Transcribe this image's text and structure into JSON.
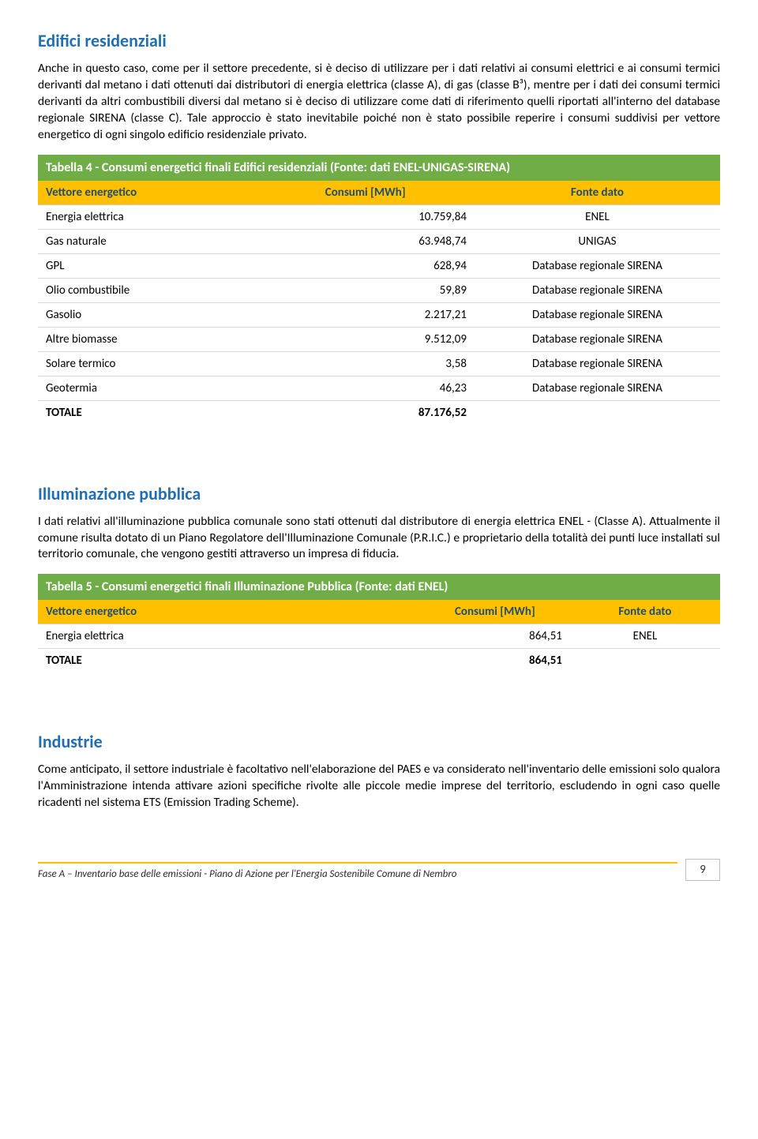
{
  "section1": {
    "title": "Edifici residenziali",
    "para": "Anche in questo caso, come per il settore precedente, si è deciso di utilizzare per i dati relativi ai consumi elettrici e ai consumi termici derivanti dal metano i dati ottenuti dai distributori di energia elettrica (classe A), di gas (classe B³), mentre per i dati dei consumi termici derivanti da altri combustibili diversi dal metano si è deciso di utilizzare come dati di riferimento quelli riportati all'interno del database regionale SIRENA (classe C). Tale approccio è stato inevitabile poiché non è stato possibile reperire i consumi suddivisi per vettore energetico di ogni singolo edificio residenziale privato."
  },
  "table4": {
    "title": "Tabella 4 - Consumi energetici finali Edifici residenziali (Fonte: dati ENEL-UNIGAS-SIRENA)",
    "headers": {
      "c0": "Vettore energetico",
      "c1": "Consumi [MWh]",
      "c2": "Fonte dato"
    },
    "rows": [
      {
        "c0": "Energia elettrica",
        "c1": "10.759,84",
        "c2": "ENEL"
      },
      {
        "c0": "Gas naturale",
        "c1": "63.948,74",
        "c2": "UNIGAS"
      },
      {
        "c0": "GPL",
        "c1": "628,94",
        "c2": "Database regionale SIRENA"
      },
      {
        "c0": "Olio combustibile",
        "c1": "59,89",
        "c2": "Database regionale SIRENA"
      },
      {
        "c0": "Gasolio",
        "c1": "2.217,21",
        "c2": "Database regionale SIRENA"
      },
      {
        "c0": "Altre biomasse",
        "c1": "9.512,09",
        "c2": "Database regionale SIRENA"
      },
      {
        "c0": "Solare termico",
        "c1": "3,58",
        "c2": "Database regionale SIRENA"
      },
      {
        "c0": "Geotermia",
        "c1": "46,23",
        "c2": "Database regionale SIRENA"
      }
    ],
    "total": {
      "label": "TOTALE",
      "value": "87.176,52"
    },
    "col_widths": [
      "32%",
      "32%",
      "36%"
    ]
  },
  "section2": {
    "title": "Illuminazione pubblica",
    "para": "I dati relativi all'illuminazione pubblica comunale sono stati ottenuti dal distributore di energia elettrica ENEL - (Classe A). Attualmente il comune risulta dotato di un Piano Regolatore dell'Illuminazione Comunale (P.R.I.C.) e proprietario della totalità dei punti luce installati sul territorio comunale, che vengono gestiti attraverso un impresa di fiducia."
  },
  "table5": {
    "title": "Tabella 5 - Consumi energetici finali Illuminazione Pubblica (Fonte: dati ENEL)",
    "headers": {
      "c0": "Vettore energetico",
      "c1": "Consumi [MWh]",
      "c2": "Fonte dato"
    },
    "rows": [
      {
        "c0": "Energia elettrica",
        "c1": "864,51",
        "c2": "ENEL"
      }
    ],
    "total": {
      "label": "TOTALE",
      "value": "864,51"
    },
    "col_widths": [
      "56%",
      "22%",
      "22%"
    ]
  },
  "section3": {
    "title": "Industrie",
    "para": "Come anticipato, il settore industriale è facoltativo nell'elaborazione del PAES e va considerato nell'inventario delle emissioni solo qualora l'Amministrazione intenda attivare azioni specifiche rivolte alle piccole medie imprese del territorio, escludendo in ogni caso quelle ricadenti nel sistema ETS (Emission Trading Scheme)."
  },
  "footer": {
    "text": "Fase A – Inventario base delle emissioni - Piano di Azione per l'Energia Sostenibile Comune di Nembro",
    "page": "9"
  },
  "colors": {
    "heading": "#1f6fb2",
    "table_title_bg": "#70ad47",
    "table_header_bg": "#ffc000",
    "table_header_fg": "#1f4e79",
    "footer_line": "#ffc000"
  }
}
